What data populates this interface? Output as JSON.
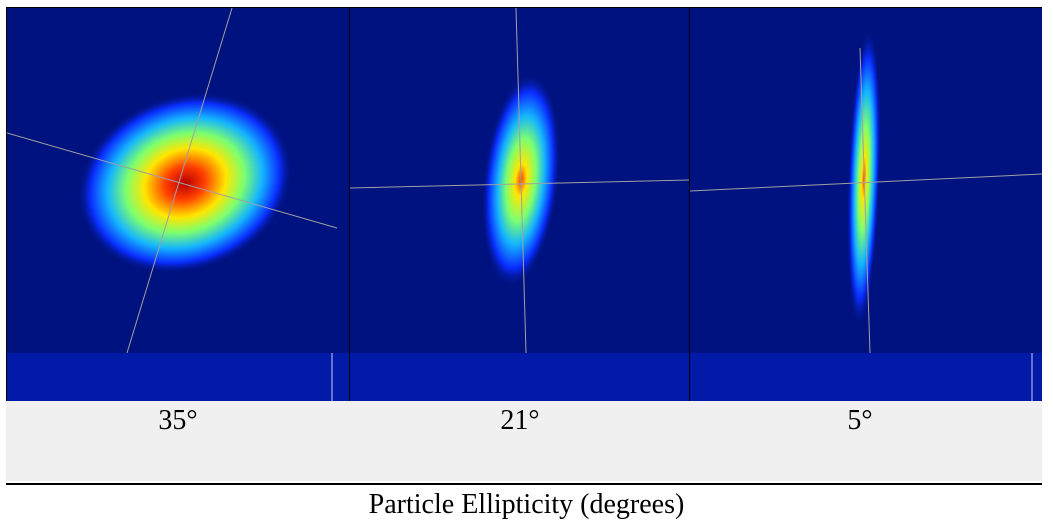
{
  "panels": [
    {
      "label": "35°",
      "rotation_deg": 35,
      "spread": "wide"
    },
    {
      "label": "21°",
      "rotation_deg": 21,
      "spread": "medium"
    },
    {
      "label": "5°",
      "rotation_deg": 5,
      "spread": "narrow"
    }
  ],
  "caption": "Particle Ellipticity (degrees)",
  "colors": {
    "background": "#00127f",
    "low": "#0a2dff",
    "mid_low": "#14b4ff",
    "mid": "#7dff6e",
    "mid_high": "#ffe600",
    "high": "#ff3c00",
    "peak": "#b40000",
    "axis_line": "#a0a0a0"
  }
}
